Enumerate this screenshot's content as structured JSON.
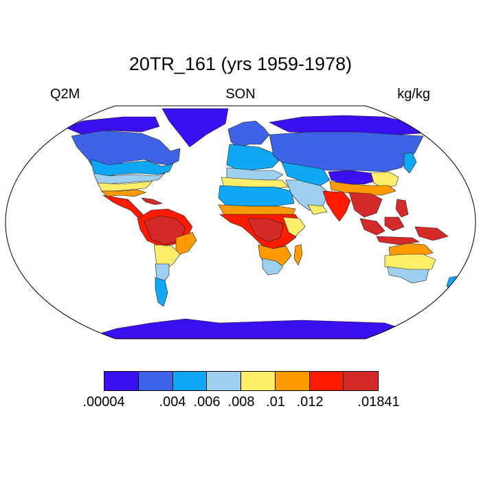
{
  "title": "20TR_161 (yrs 1959-1978)",
  "left_label": "Q2M",
  "center_label": "SON",
  "right_label": "kg/kg",
  "map": {
    "projection": "Robinson",
    "ocean_color": "#ffffff",
    "outline_color": "#000000"
  },
  "colorbar": {
    "colors": [
      "#3a10f2",
      "#3f63e6",
      "#10a8f5",
      "#9dd0ee",
      "#ffee6a",
      "#ff9a00",
      "#ff1a00",
      "#d42a2a"
    ],
    "labels": [
      ".00004",
      ".004",
      ".006",
      ".008",
      ".01",
      ".012",
      ".01841"
    ],
    "label_boundary_index": [
      0,
      2,
      3,
      4,
      5,
      6,
      8
    ]
  }
}
